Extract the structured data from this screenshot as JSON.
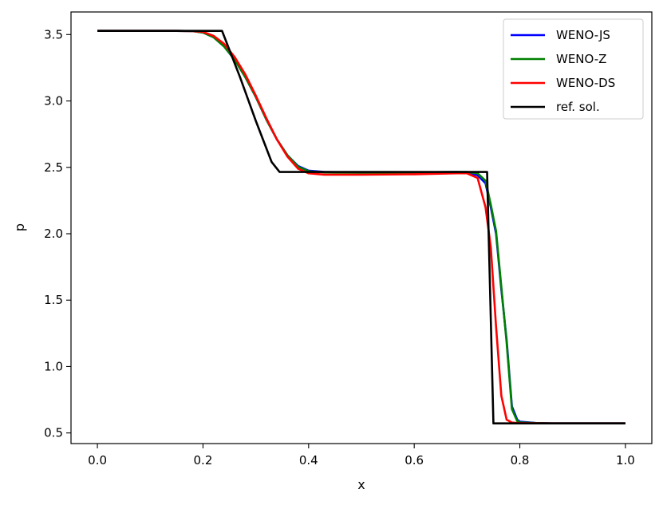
{
  "chart_data": {
    "type": "line",
    "xlabel": "x",
    "ylabel": "p",
    "xlim": [
      -0.05,
      1.05
    ],
    "ylim": [
      0.42,
      3.67
    ],
    "xticks": [
      "0.0",
      "0.2",
      "0.4",
      "0.6",
      "0.8",
      "1.0"
    ],
    "yticks": [
      "0.5",
      "1.0",
      "1.5",
      "2.0",
      "2.5",
      "3.0",
      "3.5"
    ],
    "grid": false,
    "legend_position": "top-right",
    "series": [
      {
        "name": "WENO-JS",
        "color": "#0000ff",
        "points": [
          [
            0.0,
            3.528
          ],
          [
            0.15,
            3.528
          ],
          [
            0.18,
            3.526
          ],
          [
            0.2,
            3.515
          ],
          [
            0.22,
            3.48
          ],
          [
            0.24,
            3.41
          ],
          [
            0.26,
            3.31
          ],
          [
            0.28,
            3.18
          ],
          [
            0.3,
            3.03
          ],
          [
            0.32,
            2.86
          ],
          [
            0.34,
            2.71
          ],
          [
            0.36,
            2.59
          ],
          [
            0.38,
            2.51
          ],
          [
            0.4,
            2.475
          ],
          [
            0.43,
            2.465
          ],
          [
            0.5,
            2.46
          ],
          [
            0.6,
            2.462
          ],
          [
            0.68,
            2.465
          ],
          [
            0.7,
            2.462
          ],
          [
            0.72,
            2.44
          ],
          [
            0.735,
            2.38
          ],
          [
            0.745,
            2.2
          ],
          [
            0.755,
            2.0
          ],
          [
            0.765,
            1.58
          ],
          [
            0.775,
            1.2
          ],
          [
            0.785,
            0.7
          ],
          [
            0.795,
            0.6
          ],
          [
            0.8,
            0.585
          ],
          [
            0.83,
            0.575
          ],
          [
            0.86,
            0.572
          ],
          [
            1.0,
            0.572
          ]
        ]
      },
      {
        "name": "WENO-Z",
        "color": "#008000",
        "points": [
          [
            0.0,
            3.528
          ],
          [
            0.15,
            3.528
          ],
          [
            0.18,
            3.526
          ],
          [
            0.2,
            3.515
          ],
          [
            0.22,
            3.48
          ],
          [
            0.24,
            3.41
          ],
          [
            0.26,
            3.31
          ],
          [
            0.28,
            3.18
          ],
          [
            0.3,
            3.03
          ],
          [
            0.32,
            2.86
          ],
          [
            0.34,
            2.71
          ],
          [
            0.36,
            2.59
          ],
          [
            0.38,
            2.505
          ],
          [
            0.4,
            2.47
          ],
          [
            0.43,
            2.462
          ],
          [
            0.5,
            2.46
          ],
          [
            0.6,
            2.462
          ],
          [
            0.68,
            2.465
          ],
          [
            0.7,
            2.465
          ],
          [
            0.72,
            2.455
          ],
          [
            0.735,
            2.4
          ],
          [
            0.745,
            2.22
          ],
          [
            0.755,
            2.02
          ],
          [
            0.765,
            1.6
          ],
          [
            0.775,
            1.18
          ],
          [
            0.785,
            0.68
          ],
          [
            0.795,
            0.59
          ],
          [
            0.8,
            0.58
          ],
          [
            0.83,
            0.574
          ],
          [
            0.86,
            0.572
          ],
          [
            1.0,
            0.572
          ]
        ]
      },
      {
        "name": "WENO-DS",
        "color": "#ff0000",
        "points": [
          [
            0.0,
            3.528
          ],
          [
            0.15,
            3.528
          ],
          [
            0.18,
            3.526
          ],
          [
            0.2,
            3.52
          ],
          [
            0.22,
            3.49
          ],
          [
            0.24,
            3.43
          ],
          [
            0.26,
            3.33
          ],
          [
            0.28,
            3.2
          ],
          [
            0.3,
            3.04
          ],
          [
            0.32,
            2.87
          ],
          [
            0.34,
            2.71
          ],
          [
            0.36,
            2.58
          ],
          [
            0.38,
            2.49
          ],
          [
            0.4,
            2.455
          ],
          [
            0.43,
            2.445
          ],
          [
            0.5,
            2.445
          ],
          [
            0.6,
            2.448
          ],
          [
            0.68,
            2.455
          ],
          [
            0.7,
            2.455
          ],
          [
            0.72,
            2.42
          ],
          [
            0.735,
            2.2
          ],
          [
            0.745,
            1.9
          ],
          [
            0.755,
            1.3
          ],
          [
            0.765,
            0.78
          ],
          [
            0.775,
            0.6
          ],
          [
            0.785,
            0.578
          ],
          [
            0.8,
            0.574
          ],
          [
            0.86,
            0.572
          ],
          [
            1.0,
            0.572
          ]
        ]
      },
      {
        "name": "ref. sol.",
        "color": "#000000",
        "points": [
          [
            0.0,
            3.528
          ],
          [
            0.236,
            3.528
          ],
          [
            0.27,
            3.18
          ],
          [
            0.3,
            2.85
          ],
          [
            0.33,
            2.54
          ],
          [
            0.345,
            2.465
          ],
          [
            0.5,
            2.465
          ],
          [
            0.738,
            2.465
          ],
          [
            0.75,
            0.572
          ],
          [
            1.0,
            0.572
          ]
        ]
      }
    ]
  }
}
